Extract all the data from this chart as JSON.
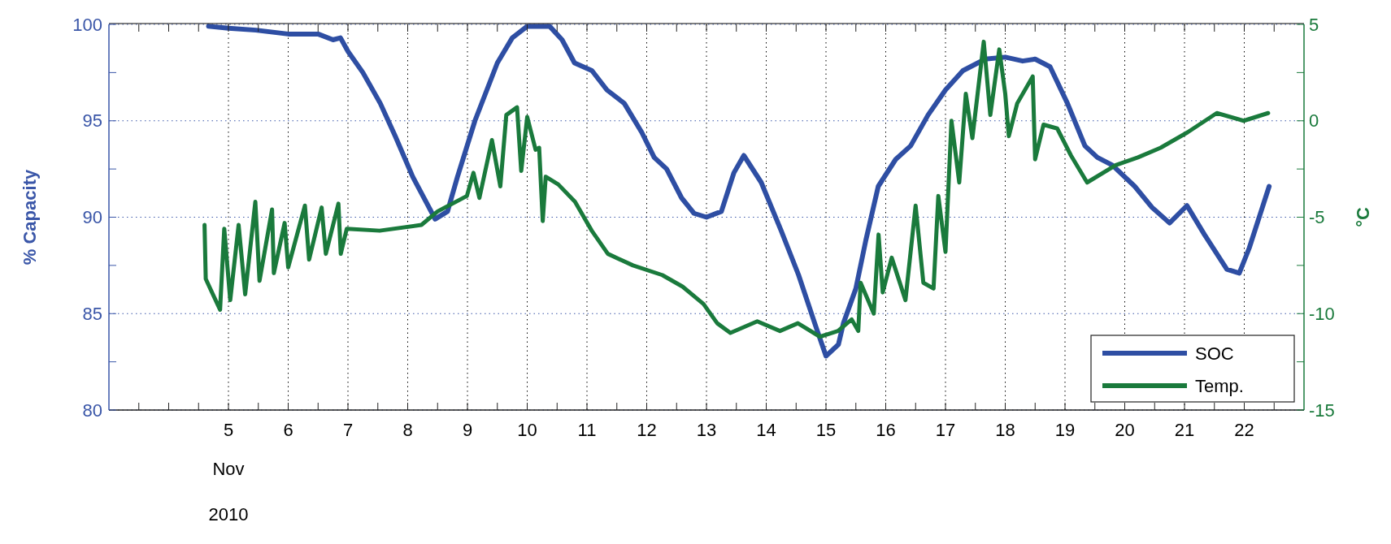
{
  "chart_data": {
    "type": "line",
    "xlim": [
      "2010-11-03T00:00",
      "2010-11-23T00:00"
    ],
    "xticks": [
      {
        "value": "2010-11-03T12:00",
        "label": null
      },
      {
        "value": "2010-11-04T00:00",
        "label": null
      },
      {
        "value": "2010-11-04T12:00",
        "label": null
      },
      {
        "value": "2010-11-05T00:00",
        "label": "5"
      },
      {
        "value": "2010-11-05T12:00",
        "label": null
      },
      {
        "value": "2010-11-06T00:00",
        "label": "6"
      },
      {
        "value": "2010-11-06T12:00",
        "label": null
      },
      {
        "value": "2010-11-07T00:00",
        "label": "7"
      },
      {
        "value": "2010-11-07T12:00",
        "label": null
      },
      {
        "value": "2010-11-08T00:00",
        "label": "8"
      },
      {
        "value": "2010-11-08T12:00",
        "label": null
      },
      {
        "value": "2010-11-09T00:00",
        "label": "9"
      },
      {
        "value": "2010-11-09T12:00",
        "label": null
      },
      {
        "value": "2010-11-10T00:00",
        "label": "10"
      },
      {
        "value": "2010-11-10T12:00",
        "label": null
      },
      {
        "value": "2010-11-11T00:00",
        "label": "11"
      },
      {
        "value": "2010-11-11T12:00",
        "label": null
      },
      {
        "value": "2010-11-12T00:00",
        "label": "12"
      },
      {
        "value": "2010-11-12T12:00",
        "label": null
      },
      {
        "value": "2010-11-13T00:00",
        "label": "13"
      },
      {
        "value": "2010-11-13T12:00",
        "label": null
      },
      {
        "value": "2010-11-14T00:00",
        "label": "14"
      },
      {
        "value": "2010-11-14T12:00",
        "label": null
      },
      {
        "value": "2010-11-15T00:00",
        "label": "15"
      },
      {
        "value": "2010-11-15T12:00",
        "label": null
      },
      {
        "value": "2010-11-16T00:00",
        "label": "16"
      },
      {
        "value": "2010-11-16T12:00",
        "label": null
      },
      {
        "value": "2010-11-17T00:00",
        "label": "17"
      },
      {
        "value": "2010-11-17T12:00",
        "label": null
      },
      {
        "value": "2010-11-18T00:00",
        "label": "18"
      },
      {
        "value": "2010-11-18T12:00",
        "label": null
      },
      {
        "value": "2010-11-19T00:00",
        "label": "19"
      },
      {
        "value": "2010-11-19T12:00",
        "label": null
      },
      {
        "value": "2010-11-20T00:00",
        "label": "20"
      },
      {
        "value": "2010-11-20T12:00",
        "label": null
      },
      {
        "value": "2010-11-21T00:00",
        "label": "21"
      },
      {
        "value": "2010-11-21T12:00",
        "label": null
      },
      {
        "value": "2010-11-22T00:00",
        "label": "22"
      },
      {
        "value": "2010-11-22T12:00",
        "label": null
      }
    ],
    "ylim": [
      80,
      100
    ],
    "yticks": [
      80,
      {
        "value": 82.5,
        "label": null
      },
      85,
      {
        "value": 87.5,
        "label": null
      },
      90,
      {
        "value": 92.5,
        "label": null
      },
      95,
      {
        "value": 97.5,
        "label": null
      },
      100
    ],
    "y2lim": [
      -15,
      5
    ],
    "y2ticks": [
      -15,
      {
        "value": -12.5,
        "label": null
      },
      -10,
      {
        "value": -7.5,
        "label": null
      },
      -5,
      {
        "value": -2.5,
        "label": null
      },
      0,
      {
        "value": 2.5,
        "label": null
      },
      5
    ],
    "ylabel": "% Capacity",
    "y2label": "°C",
    "annotations": [
      "Nov",
      "2010"
    ],
    "grid": true,
    "legend": "bottom right",
    "line_style": "solid",
    "marker": "none",
    "series": [
      {
        "name": "SOC",
        "color": "#2e4ea3",
        "x": [
          "2010-11-04T16:00",
          "2010-11-05T00:00",
          "2010-11-05T11:00",
          "2010-11-06T00:00",
          "2010-11-06T12:00",
          "2010-11-06T18:00",
          "2010-11-06T21:00",
          "2010-11-07T00:00",
          "2010-11-07T06:00",
          "2010-11-07T13:00",
          "2010-11-07T19:00",
          "2010-11-08T02:00",
          "2010-11-08T09:00",
          "2010-11-08T11:00",
          "2010-11-08T16:00",
          "2010-11-08T20:00",
          "2010-11-09T03:00",
          "2010-11-09T12:00",
          "2010-11-09T18:00",
          "2010-11-10T00:00",
          "2010-11-10T04:00",
          "2010-11-10T09:00",
          "2010-11-10T14:00",
          "2010-11-10T19:00",
          "2010-11-11T02:00",
          "2010-11-11T08:00",
          "2010-11-11T15:00",
          "2010-11-11T22:00",
          "2010-11-12T03:00",
          "2010-11-12T08:00",
          "2010-11-12T14:00",
          "2010-11-12T19:00",
          "2010-11-13T00:00",
          "2010-11-13T06:00",
          "2010-11-13T11:00",
          "2010-11-13T15:00",
          "2010-11-13T22:00",
          "2010-11-14T06:00",
          "2010-11-14T13:00",
          "2010-11-14T20:00",
          "2010-11-15T00:00",
          "2010-11-15T05:00",
          "2010-11-15T07:00",
          "2010-11-15T12:00",
          "2010-11-15T16:00",
          "2010-11-15T21:00",
          "2010-11-16T04:00",
          "2010-11-16T10:00",
          "2010-11-16T17:00",
          "2010-11-17T00:00",
          "2010-11-17T07:00",
          "2010-11-17T16:00",
          "2010-11-18T00:00",
          "2010-11-18T07:00",
          "2010-11-18T12:00",
          "2010-11-18T18:00",
          "2010-11-19T01:00",
          "2010-11-19T08:00",
          "2010-11-19T13:00",
          "2010-11-19T19:00",
          "2010-11-20T04:00",
          "2010-11-20T11:00",
          "2010-11-20T18:00",
          "2010-11-21T01:00",
          "2010-11-21T08:00",
          "2010-11-21T17:00",
          "2010-11-21T22:00",
          "2010-11-22T02:00",
          "2010-11-22T10:00"
        ],
        "values": [
          99.9,
          99.8,
          99.7,
          99.5,
          99.5,
          99.2,
          99.3,
          98.6,
          97.5,
          95.9,
          94.2,
          92.1,
          90.4,
          89.9,
          90.3,
          92.1,
          95.0,
          98.0,
          99.3,
          99.9,
          99.9,
          99.9,
          99.2,
          98.0,
          97.6,
          96.6,
          95.9,
          94.4,
          93.1,
          92.5,
          91.0,
          90.2,
          90.0,
          90.3,
          92.3,
          93.2,
          91.8,
          89.3,
          87.0,
          84.3,
          82.8,
          83.4,
          84.5,
          86.3,
          88.8,
          91.6,
          93.0,
          93.7,
          95.3,
          96.6,
          97.6,
          98.2,
          98.3,
          98.1,
          98.2,
          97.8,
          95.9,
          93.7,
          93.1,
          92.7,
          91.6,
          90.5,
          89.7,
          90.6,
          89.1,
          87.3,
          87.1,
          88.4,
          91.6
        ]
      },
      {
        "name": "Temp.",
        "color": "#1a7a3c",
        "axis": "y2",
        "x": [
          "2010-11-04T14:24",
          "2010-11-04T14:53",
          "2010-11-04T20:38",
          "2010-11-04T22:19",
          "2010-11-05T00:43",
          "2010-11-05T04:05",
          "2010-11-05T06:43",
          "2010-11-05T10:48",
          "2010-11-05T12:29",
          "2010-11-05T17:31",
          "2010-11-05T18:14",
          "2010-11-05T22:34",
          "2010-11-06T00:00",
          "2010-11-06T06:43",
          "2010-11-06T08:24",
          "2010-11-06T13:26",
          "2010-11-06T15:07",
          "2010-11-06T20:10",
          "2010-11-06T21:07",
          "2010-11-06T23:31",
          "2010-11-07T12:43",
          "2010-11-08T05:31",
          "2010-11-08T12:00",
          "2010-11-08T23:46",
          "2010-11-09T02:24",
          "2010-11-09T04:48",
          "2010-11-09T09:50",
          "2010-11-09T13:12",
          "2010-11-09T15:36",
          "2010-11-09T19:55",
          "2010-11-09T21:36",
          "2010-11-10T00:00",
          "2010-11-10T03:22",
          "2010-11-10T04:48",
          "2010-11-10T06:14",
          "2010-11-10T07:26",
          "2010-11-10T12:29",
          "2010-11-10T19:12",
          "2010-11-11T01:55",
          "2010-11-11T08:24",
          "2010-11-11T18:29",
          "2010-11-12T06:14",
          "2010-11-12T14:24",
          "2010-11-12T22:48",
          "2010-11-13T04:19",
          "2010-11-13T09:36",
          "2010-11-13T20:24",
          "2010-11-14T05:31",
          "2010-11-14T12:43",
          "2010-11-14T21:36",
          "2010-11-15T04:48",
          "2010-11-15T10:19",
          "2010-11-15T12:58",
          "2010-11-15T13:55",
          "2010-11-15T19:12",
          "2010-11-15T21:07",
          "2010-11-15T22:48",
          "2010-11-16T02:24",
          "2010-11-16T07:55",
          "2010-11-16T12:00",
          "2010-11-16T15:07",
          "2010-11-16T19:12",
          "2010-11-16T21:07",
          "2010-11-17T00:00",
          "2010-11-17T02:24",
          "2010-11-17T05:31",
          "2010-11-17T08:10",
          "2010-11-17T10:48",
          "2010-11-17T15:22",
          "2010-11-17T18:00",
          "2010-11-17T21:36",
          "2010-11-18T00:00",
          "2010-11-18T01:26",
          "2010-11-18T04:48",
          "2010-11-18T11:02",
          "2010-11-18T12:00",
          "2010-11-18T15:22",
          "2010-11-18T20:53",
          "2010-11-19T02:24",
          "2010-11-19T08:53",
          "2010-11-19T20:24",
          "2010-11-20T05:17",
          "2010-11-20T14:24",
          "2010-11-21T01:12",
          "2010-11-21T12:58",
          "2010-11-21T23:46",
          "2010-11-22T09:36"
        ],
        "values": [
          -5.4,
          -8.2,
          -9.8,
          -5.6,
          -9.3,
          -5.4,
          -9.0,
          -4.2,
          -8.3,
          -4.6,
          -7.9,
          -5.3,
          -7.6,
          -4.4,
          -7.2,
          -4.5,
          -6.9,
          -4.3,
          -6.9,
          -5.6,
          -5.7,
          -5.4,
          -4.7,
          -3.9,
          -2.7,
          -4.0,
          -1.0,
          -3.4,
          0.3,
          0.7,
          -2.6,
          0.2,
          -1.5,
          -1.4,
          -5.2,
          -2.9,
          -3.3,
          -4.2,
          -5.7,
          -6.9,
          -7.5,
          -8.0,
          -8.6,
          -9.5,
          -10.5,
          -11.0,
          -10.4,
          -10.9,
          -10.5,
          -11.2,
          -10.9,
          -10.3,
          -10.9,
          -8.4,
          -10.0,
          -5.9,
          -8.9,
          -7.1,
          -9.3,
          -4.4,
          -8.4,
          -8.7,
          -3.9,
          -6.8,
          0.0,
          -3.2,
          1.4,
          -0.9,
          4.1,
          0.3,
          3.7,
          1.4,
          -0.8,
          0.9,
          2.3,
          -2.0,
          -0.2,
          -0.4,
          -1.8,
          -3.2,
          -2.3,
          -1.9,
          -1.4,
          -0.6,
          0.4,
          0.0,
          0.4
        ]
      }
    ]
  }
}
